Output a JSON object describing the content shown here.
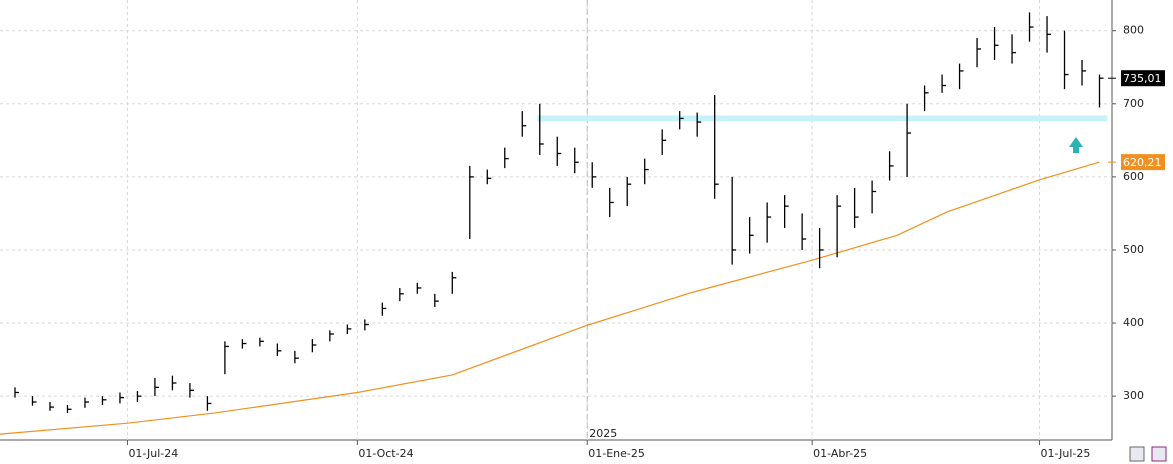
{
  "chart_data": {
    "type": "ohlc",
    "xlim": [
      "2024-05-11",
      "2025-07-30"
    ],
    "ylim": [
      240,
      842
    ],
    "yticks": [
      300,
      400,
      500,
      600,
      700,
      800
    ],
    "xticks": [
      {
        "value": "2024-07-01",
        "label": "01-Jul-24"
      },
      {
        "value": "2024-10-01",
        "label": "01-Oct-24"
      },
      {
        "value": "2025-01-01",
        "label": "01-Ene-25"
      },
      {
        "value": "2025-04-01",
        "label": "01-Abr-25"
      },
      {
        "value": "2025-07-01",
        "label": "01-Jul-25"
      }
    ],
    "year_marker": {
      "value": "2025-01-01",
      "label": "2025"
    },
    "grid": true,
    "price": {
      "color": "#000000",
      "x": [
        "2024-05-17",
        "2024-05-24",
        "2024-05-31",
        "2024-06-07",
        "2024-06-14",
        "2024-06-21",
        "2024-06-28",
        "2024-07-05",
        "2024-07-12",
        "2024-07-19",
        "2024-07-26",
        "2024-08-02",
        "2024-08-09",
        "2024-08-16",
        "2024-08-23",
        "2024-08-30",
        "2024-09-06",
        "2024-09-13",
        "2024-09-20",
        "2024-09-27",
        "2024-10-04",
        "2024-10-11",
        "2024-10-18",
        "2024-10-25",
        "2024-11-01",
        "2024-11-08",
        "2024-11-15",
        "2024-11-22",
        "2024-11-29",
        "2024-12-06",
        "2024-12-13",
        "2024-12-20",
        "2024-12-27",
        "2025-01-03",
        "2025-01-10",
        "2025-01-17",
        "2025-01-24",
        "2025-01-31",
        "2025-02-07",
        "2025-02-14",
        "2025-02-21",
        "2025-02-28",
        "2025-03-07",
        "2025-03-14",
        "2025-03-21",
        "2025-03-28",
        "2025-04-04",
        "2025-04-11",
        "2025-04-18",
        "2025-04-25",
        "2025-05-02",
        "2025-05-09",
        "2025-05-16",
        "2025-05-23",
        "2025-05-30",
        "2025-06-06",
        "2025-06-13",
        "2025-06-20",
        "2025-06-27",
        "2025-07-04",
        "2025-07-11",
        "2025-07-18",
        "2025-07-25"
      ],
      "high": [
        312,
        300,
        292,
        288,
        298,
        300,
        305,
        307,
        325,
        328,
        318,
        300,
        375,
        378,
        380,
        372,
        362,
        378,
        390,
        398,
        405,
        428,
        448,
        455,
        440,
        470,
        615,
        610,
        640,
        690,
        700,
        655,
        640,
        620,
        585,
        600,
        625,
        665,
        690,
        688,
        712,
        600,
        545,
        565,
        575,
        550,
        530,
        575,
        585,
        595,
        635,
        700,
        725,
        740,
        755,
        790,
        805,
        795,
        825,
        820,
        800,
        760,
        740
      ],
      "low": [
        298,
        287,
        280,
        277,
        284,
        288,
        290,
        292,
        300,
        308,
        298,
        280,
        330,
        365,
        368,
        355,
        345,
        360,
        375,
        385,
        390,
        410,
        430,
        440,
        422,
        440,
        515,
        590,
        612,
        655,
        630,
        615,
        605,
        585,
        545,
        560,
        590,
        630,
        665,
        655,
        570,
        480,
        495,
        510,
        530,
        500,
        475,
        490,
        530,
        550,
        595,
        600,
        690,
        715,
        720,
        750,
        760,
        755,
        785,
        770,
        720,
        725,
        695
      ],
      "close": [
        305,
        292,
        285,
        282,
        292,
        295,
        298,
        300,
        312,
        318,
        308,
        290,
        368,
        372,
        375,
        362,
        352,
        370,
        385,
        392,
        398,
        420,
        440,
        448,
        430,
        462,
        600,
        598,
        625,
        670,
        645,
        632,
        620,
        600,
        565,
        590,
        610,
        650,
        680,
        675,
        590,
        500,
        520,
        545,
        560,
        515,
        500,
        560,
        545,
        580,
        615,
        660,
        715,
        725,
        745,
        775,
        780,
        770,
        805,
        795,
        740,
        745,
        735
      ],
      "last_label": {
        "value": 735.01,
        "label": "735,01"
      }
    },
    "moving_average": {
      "color": "#f0901e",
      "x": [
        "2024-05-11",
        "2024-07-01",
        "2024-08-05",
        "2024-10-01",
        "2024-11-08",
        "2025-01-01",
        "2025-02-12",
        "2025-04-01",
        "2025-05-05",
        "2025-05-25",
        "2025-07-01",
        "2025-07-25"
      ],
      "values": [
        248,
        263,
        277,
        305,
        329,
        397,
        442,
        486,
        520,
        552,
        596,
        620.21
      ],
      "last_label": {
        "value": 620.21,
        "label": "620,21"
      }
    },
    "band": {
      "value": 680,
      "x": [
        "2024-12-12",
        "2025-07-28"
      ],
      "color": "#c8f2fa"
    }
  }
}
